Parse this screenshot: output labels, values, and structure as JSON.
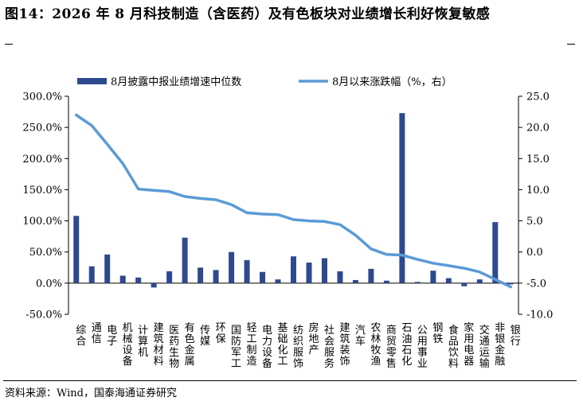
{
  "title": "图14：2026 年 8 月科技制造（含医药）及有色板块对业绩增长利好恢复敏感",
  "source": "资料来源：Wind，国泰海通证券研究",
  "colors": {
    "bar": "#2E4A8E",
    "line": "#5B9BD5"
  },
  "chart_data": {
    "type": "bar+line",
    "legend_position": "top",
    "categories": [
      "综合",
      "通信",
      "电子",
      "机械设备",
      "计算机",
      "建筑材料",
      "医药生物",
      "有色金属",
      "传媒",
      "环保",
      "国防军工",
      "轻工制造",
      "电力设备",
      "基础化工",
      "纺织服饰",
      "房地产",
      "社会服务",
      "建筑装饰",
      "汽车",
      "农林牧渔",
      "商贸零售",
      "石油石化",
      "公用事业",
      "钢铁",
      "食品饮料",
      "家用电器",
      "交通运输",
      "非银金融",
      "银行"
    ],
    "series": [
      {
        "name": "8月披露中报业绩增速中位数",
        "type": "bar",
        "axis": "left",
        "values": [
          108,
          27,
          46,
          12,
          9,
          -7,
          19,
          73,
          25,
          21,
          50,
          37,
          18,
          6,
          43,
          33,
          40,
          19,
          5,
          23,
          4,
          273,
          2,
          20,
          8,
          -5,
          6,
          98,
          -2
        ]
      },
      {
        "name": "8月以来涨跌幅（%，右）",
        "type": "line",
        "axis": "right",
        "values": [
          22.0,
          20.3,
          17.3,
          14.2,
          10.1,
          9.9,
          9.7,
          8.9,
          8.6,
          8.4,
          7.6,
          6.3,
          6.1,
          6.0,
          5.2,
          5.0,
          4.9,
          4.4,
          2.7,
          0.5,
          -0.4,
          -0.5,
          -1.2,
          -1.8,
          -2.2,
          -2.6,
          -3.2,
          -4.4,
          -5.6
        ]
      }
    ],
    "y_left": {
      "min": -50,
      "max": 300,
      "step": 50,
      "suffix": "%",
      "decimals": 1
    },
    "y_right": {
      "min": -10,
      "max": 25,
      "step": 5,
      "decimals": 1
    }
  }
}
